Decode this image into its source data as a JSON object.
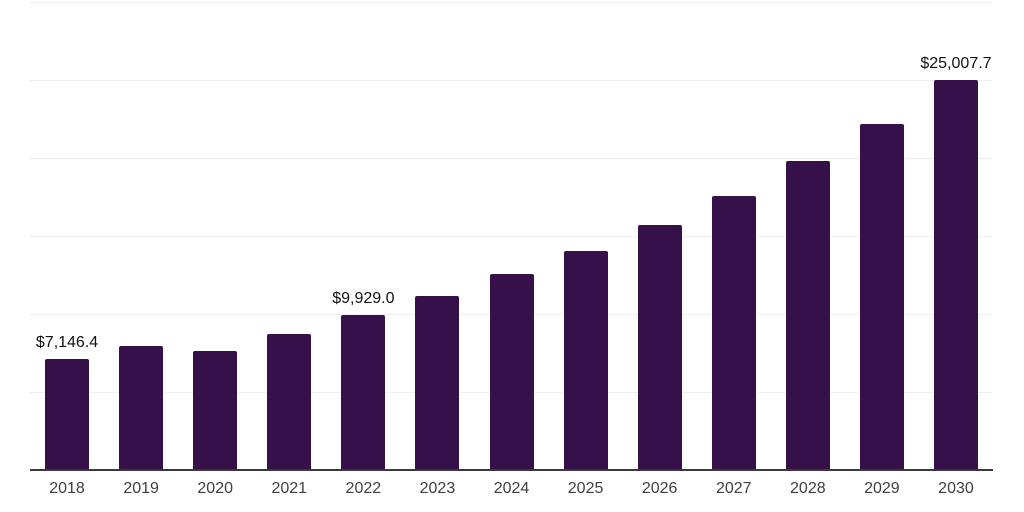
{
  "chart_data": {
    "type": "bar",
    "title": "",
    "xlabel": "",
    "ylabel": "",
    "categories": [
      "2018",
      "2019",
      "2020",
      "2021",
      "2022",
      "2023",
      "2024",
      "2025",
      "2026",
      "2027",
      "2028",
      "2029",
      "2030"
    ],
    "values": [
      7146.4,
      7950,
      7600,
      8700,
      9929.0,
      11150,
      12550,
      14050,
      15700,
      17550,
      19800,
      22200,
      25007.7
    ],
    "bar_labels": [
      "$7,146.4",
      "",
      "",
      "",
      "$9,929.0",
      "",
      "",
      "",
      "",
      "",
      "",
      "",
      "$25,007.7"
    ],
    "ylim": [
      0,
      30000
    ],
    "gridline_step": 5000,
    "grid": "horizontal",
    "legend": false,
    "y_axis_ticks_visible": false
  },
  "colors": {
    "background": "#ffffff",
    "bar": "#351049",
    "gridline": "#efefef",
    "axis_line": "#3a3a3a",
    "bar_value_label": "#111111",
    "x_tick_label": "#3f3f3f"
  }
}
